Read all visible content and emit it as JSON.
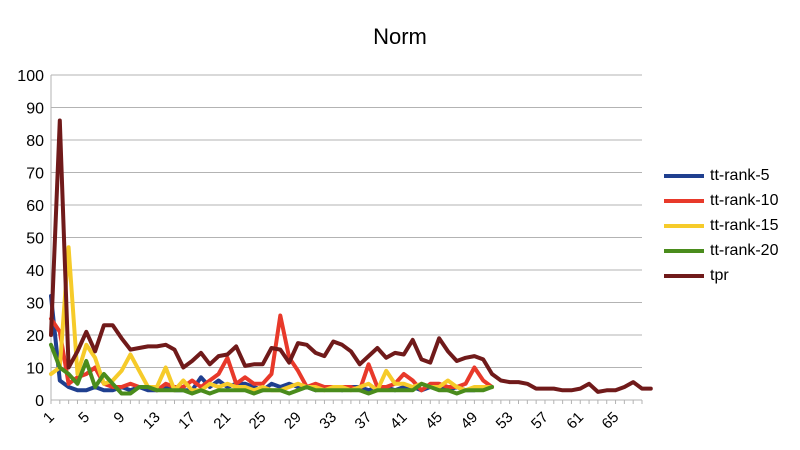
{
  "chart_data": {
    "type": "line",
    "title": "Norm",
    "xlabel": "",
    "ylabel": "",
    "ylim": [
      0,
      100
    ],
    "yticks": [
      0,
      10,
      20,
      30,
      40,
      50,
      60,
      70,
      80,
      90,
      100
    ],
    "x_min": 1,
    "x_max": 68,
    "xticks": [
      1,
      5,
      9,
      13,
      17,
      21,
      25,
      29,
      33,
      37,
      41,
      45,
      49,
      53,
      57,
      61,
      65
    ],
    "grid": "horizontal",
    "legend_position": "right",
    "series": [
      {
        "name": "tt-rank-5",
        "color": "#1f3f8f",
        "values": [
          32,
          6,
          4,
          3,
          3,
          4,
          3,
          3,
          4,
          3,
          4,
          3,
          3,
          4,
          3,
          3,
          3,
          7,
          4,
          6,
          4,
          5,
          5,
          4,
          3,
          5,
          4,
          5,
          4,
          4,
          3,
          4,
          4,
          3,
          4,
          4,
          3,
          4,
          4,
          3,
          4,
          4,
          3,
          4,
          4,
          3,
          4,
          3,
          3,
          4,
          4
        ]
      },
      {
        "name": "tt-rank-10",
        "color": "#e8392a",
        "values": [
          25,
          21,
          5,
          7,
          8,
          10,
          5,
          4,
          4,
          5,
          4,
          4,
          3,
          5,
          4,
          4,
          6,
          4,
          6,
          8,
          13,
          5,
          7,
          5,
          5,
          8,
          26,
          13,
          9,
          4,
          5,
          4,
          4,
          4,
          4,
          3,
          11,
          4,
          4,
          5,
          8,
          6,
          3,
          5,
          5,
          4,
          4,
          5,
          10,
          6,
          4
        ]
      },
      {
        "name": "tt-rank-15",
        "color": "#f6cb2a",
        "values": [
          8,
          10,
          47,
          8,
          17,
          13,
          5,
          6,
          9,
          14,
          9,
          4,
          4,
          10,
          3,
          6,
          3,
          3,
          5,
          4,
          5,
          4,
          4,
          3,
          4,
          3,
          3,
          4,
          5,
          4,
          4,
          3,
          4,
          4,
          3,
          4,
          5,
          3,
          9,
          5,
          5,
          4,
          5,
          4,
          4,
          6,
          4,
          3,
          4,
          4,
          4
        ]
      },
      {
        "name": "tt-rank-20",
        "color": "#4a8c1c",
        "values": [
          17,
          10,
          8,
          5,
          12,
          4,
          8,
          5,
          2,
          2,
          4,
          4,
          3,
          3,
          3,
          3,
          2,
          3,
          2,
          3,
          3,
          3,
          3,
          2,
          3,
          3,
          3,
          2,
          3,
          4,
          3,
          3,
          3,
          3,
          3,
          3,
          2,
          3,
          3,
          3,
          3,
          3,
          5,
          4,
          3,
          3,
          2,
          3,
          3,
          3,
          4
        ]
      },
      {
        "name": "tpr",
        "color": "#701a1a",
        "values": [
          20,
          86,
          10,
          15,
          21,
          15,
          23,
          23,
          19,
          15.5,
          16,
          16.5,
          16.5,
          17,
          15.5,
          10,
          12,
          14.5,
          11,
          13.5,
          14,
          16.5,
          10.5,
          11,
          11,
          16,
          15.5,
          11.5,
          17.5,
          17,
          14.5,
          13.5,
          18,
          17,
          15,
          11,
          13.5,
          16,
          13,
          14.5,
          14,
          18.5,
          12.5,
          11.5,
          19,
          15,
          12,
          13,
          13.5,
          12.5,
          8,
          6,
          5.5,
          5.5,
          5,
          3.5,
          3.5,
          3.5,
          3,
          3,
          3.5,
          5,
          2.5,
          3,
          3,
          4,
          5.5,
          3.5,
          3.5
        ]
      }
    ]
  }
}
